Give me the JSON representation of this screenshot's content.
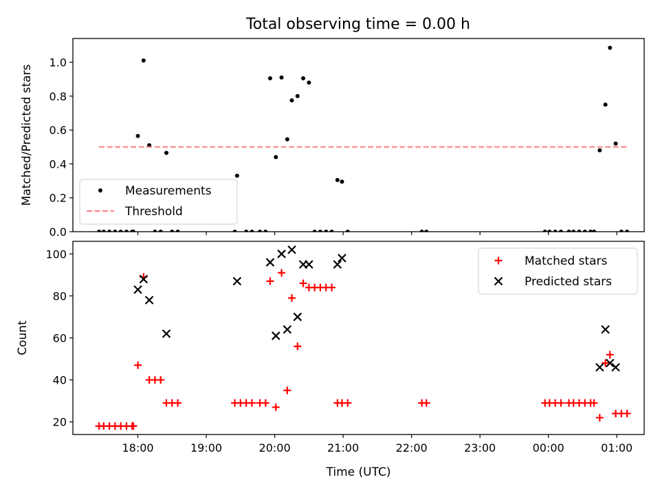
{
  "figure_title": "Total observing time = 0.00 h",
  "colors": {
    "measurement": "#000000",
    "threshold": "#ff7f7f",
    "matched": "#ff0000",
    "predicted": "#000000"
  },
  "chart_data": [
    {
      "type": "scatter",
      "ylabel": "Matched/Predicted stars",
      "xlabel": "",
      "xlim": [
        "17:03",
        "01:24"
      ],
      "ylim": [
        0,
        1.14
      ],
      "yticks": [
        "0.0",
        "0.2",
        "0.4",
        "0.6",
        "0.8",
        "1.0"
      ],
      "legend_position": "lower-left",
      "series": [
        {
          "name": "Measurements",
          "marker": "dot",
          "points": [
            [
              "17:26",
              0
            ],
            [
              "17:30",
              0
            ],
            [
              "17:35",
              0
            ],
            [
              "17:40",
              0
            ],
            [
              "17:45",
              0
            ],
            [
              "17:50",
              0
            ],
            [
              "17:55",
              0
            ],
            [
              "17:56",
              0
            ],
            [
              "18:00",
              0.565
            ],
            [
              "18:05",
              1.01
            ],
            [
              "18:10",
              0.51
            ],
            [
              "18:15",
              0
            ],
            [
              "18:20",
              0
            ],
            [
              "18:25",
              0.465
            ],
            [
              "18:30",
              0
            ],
            [
              "18:35",
              0
            ],
            [
              "19:25",
              0
            ],
            [
              "19:27",
              0.33
            ],
            [
              "19:35",
              0
            ],
            [
              "19:40",
              0
            ],
            [
              "19:47",
              0
            ],
            [
              "19:52",
              0
            ],
            [
              "19:56",
              0.905
            ],
            [
              "20:01",
              0.44
            ],
            [
              "20:06",
              0.91
            ],
            [
              "20:11",
              0.545
            ],
            [
              "20:15",
              0.775
            ],
            [
              "20:20",
              0.8
            ],
            [
              "20:25",
              0.905
            ],
            [
              "20:30",
              0.88
            ],
            [
              "20:35",
              0
            ],
            [
              "20:40",
              0
            ],
            [
              "20:45",
              0
            ],
            [
              "20:50",
              0
            ],
            [
              "20:55",
              0.305
            ],
            [
              "20:59",
              0.295
            ],
            [
              "21:04",
              0
            ],
            [
              "22:09",
              0
            ],
            [
              "22:13",
              0
            ],
            [
              "23:57",
              0
            ],
            [
              "24:01",
              0
            ],
            [
              "24:06",
              0
            ],
            [
              "24:11",
              0
            ],
            [
              "24:18",
              0
            ],
            [
              "24:22",
              0
            ],
            [
              "24:27",
              0
            ],
            [
              "24:32",
              0
            ],
            [
              "24:37",
              0
            ],
            [
              "24:40",
              0
            ],
            [
              "24:45",
              0.48
            ],
            [
              "24:50",
              0.75
            ],
            [
              "24:54",
              1.085
            ],
            [
              "24:59",
              0.52
            ],
            [
              "25:04",
              0
            ],
            [
              "25:09",
              0
            ]
          ]
        },
        {
          "name": "Threshold",
          "style": "dashed",
          "points": [
            [
              "17:26",
              0.5
            ],
            [
              "25:09",
              0.5
            ]
          ]
        }
      ]
    },
    {
      "type": "scatter",
      "ylabel": "Count",
      "xlabel": "Time (UTC)",
      "xlim": [
        "17:03",
        "01:24"
      ],
      "ylim": [
        14,
        106
      ],
      "yticks": [
        "20",
        "40",
        "60",
        "80",
        "100"
      ],
      "xticks": [
        "18:00",
        "19:00",
        "20:00",
        "21:00",
        "22:00",
        "23:00",
        "00:00",
        "01:00"
      ],
      "legend_position": "top-right",
      "series": [
        {
          "name": "Matched stars",
          "marker": "plus",
          "points": [
            [
              "17:26",
              18
            ],
            [
              "17:30",
              18
            ],
            [
              "17:35",
              18
            ],
            [
              "17:40",
              18
            ],
            [
              "17:45",
              18
            ],
            [
              "17:50",
              18
            ],
            [
              "17:55",
              18
            ],
            [
              "17:56",
              18
            ],
            [
              "18:00",
              47
            ],
            [
              "18:05",
              89
            ],
            [
              "18:10",
              40
            ],
            [
              "18:15",
              40
            ],
            [
              "18:20",
              40
            ],
            [
              "18:25",
              29
            ],
            [
              "18:30",
              29
            ],
            [
              "18:35",
              29
            ],
            [
              "19:25",
              29
            ],
            [
              "19:30",
              29
            ],
            [
              "19:35",
              29
            ],
            [
              "19:40",
              29
            ],
            [
              "19:47",
              29
            ],
            [
              "19:52",
              29
            ],
            [
              "19:56",
              87
            ],
            [
              "20:01",
              27
            ],
            [
              "20:06",
              91
            ],
            [
              "20:11",
              35
            ],
            [
              "20:15",
              79
            ],
            [
              "20:20",
              56
            ],
            [
              "20:25",
              86
            ],
            [
              "20:30",
              84
            ],
            [
              "20:35",
              84
            ],
            [
              "20:40",
              84
            ],
            [
              "20:45",
              84
            ],
            [
              "20:50",
              84
            ],
            [
              "20:55",
              29
            ],
            [
              "20:59",
              29
            ],
            [
              "21:04",
              29
            ],
            [
              "22:09",
              29
            ],
            [
              "22:13",
              29
            ],
            [
              "23:57",
              29
            ],
            [
              "24:01",
              29
            ],
            [
              "24:06",
              29
            ],
            [
              "24:11",
              29
            ],
            [
              "24:18",
              29
            ],
            [
              "24:22",
              29
            ],
            [
              "24:27",
              29
            ],
            [
              "24:32",
              29
            ],
            [
              "24:37",
              29
            ],
            [
              "24:40",
              29
            ],
            [
              "24:45",
              22
            ],
            [
              "24:50",
              48
            ],
            [
              "24:54",
              52
            ],
            [
              "24:59",
              24
            ],
            [
              "25:04",
              24
            ],
            [
              "25:09",
              24
            ]
          ]
        },
        {
          "name": "Predicted stars",
          "marker": "x",
          "points": [
            [
              "18:00",
              83
            ],
            [
              "18:05",
              88
            ],
            [
              "18:10",
              78
            ],
            [
              "18:25",
              62
            ],
            [
              "19:27",
              87
            ],
            [
              "19:56",
              96
            ],
            [
              "20:01",
              61
            ],
            [
              "20:06",
              100
            ],
            [
              "20:11",
              64
            ],
            [
              "20:15",
              102
            ],
            [
              "20:20",
              70
            ],
            [
              "20:25",
              95
            ],
            [
              "20:30",
              95
            ],
            [
              "20:55",
              95
            ],
            [
              "20:59",
              98
            ],
            [
              "24:45",
              46
            ],
            [
              "24:50",
              64
            ],
            [
              "24:54",
              48
            ],
            [
              "24:59",
              46
            ]
          ]
        }
      ]
    }
  ]
}
